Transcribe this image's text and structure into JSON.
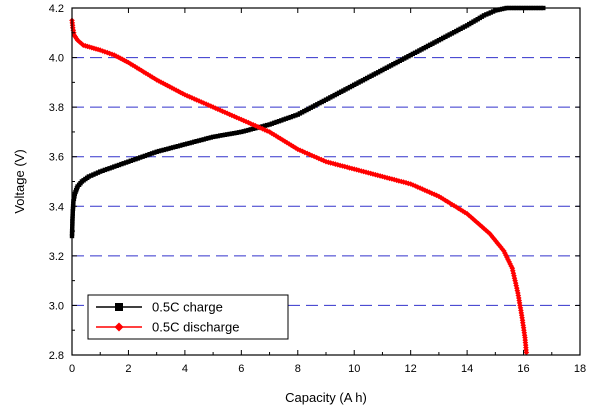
{
  "chart_data": {
    "type": "line",
    "title": "",
    "xlabel": "Capacity (A h)",
    "ylabel": "Voltage (V)",
    "xlim": [
      0,
      18
    ],
    "ylim": [
      2.8,
      4.2
    ],
    "x_ticks": [
      0,
      2,
      4,
      6,
      8,
      10,
      12,
      14,
      16,
      18
    ],
    "y_ticks": [
      2.8,
      3.0,
      3.2,
      3.4,
      3.6,
      3.8,
      4.0,
      4.2
    ],
    "grid": "horizontal dashed",
    "legend_placement": "bottom-left",
    "series": [
      {
        "name": "0.5C charge",
        "color": "#000000",
        "marker": "square",
        "points": [
          [
            0.0,
            3.28
          ],
          [
            0.02,
            3.36
          ],
          [
            0.05,
            3.42
          ],
          [
            0.1,
            3.45
          ],
          [
            0.2,
            3.48
          ],
          [
            0.35,
            3.5
          ],
          [
            0.6,
            3.52
          ],
          [
            1.0,
            3.54
          ],
          [
            1.5,
            3.56
          ],
          [
            2.0,
            3.58
          ],
          [
            3.0,
            3.62
          ],
          [
            4.0,
            3.65
          ],
          [
            5.0,
            3.68
          ],
          [
            6.0,
            3.7
          ],
          [
            7.0,
            3.73
          ],
          [
            8.0,
            3.77
          ],
          [
            9.0,
            3.83
          ],
          [
            10.0,
            3.89
          ],
          [
            11.0,
            3.95
          ],
          [
            12.0,
            4.01
          ],
          [
            13.0,
            4.07
          ],
          [
            14.0,
            4.13
          ],
          [
            14.6,
            4.17
          ],
          [
            15.0,
            4.19
          ],
          [
            15.4,
            4.2
          ],
          [
            16.0,
            4.2
          ],
          [
            16.7,
            4.2
          ]
        ]
      },
      {
        "name": "0.5C discharge",
        "color": "#ff0000",
        "marker": "diamond",
        "points": [
          [
            0.0,
            4.15
          ],
          [
            0.03,
            4.12
          ],
          [
            0.08,
            4.09
          ],
          [
            0.2,
            4.07
          ],
          [
            0.4,
            4.05
          ],
          [
            0.7,
            4.04
          ],
          [
            1.0,
            4.03
          ],
          [
            1.5,
            4.01
          ],
          [
            2.0,
            3.98
          ],
          [
            3.0,
            3.91
          ],
          [
            4.0,
            3.85
          ],
          [
            5.0,
            3.8
          ],
          [
            6.0,
            3.75
          ],
          [
            7.0,
            3.7
          ],
          [
            8.0,
            3.63
          ],
          [
            9.0,
            3.58
          ],
          [
            10.0,
            3.55
          ],
          [
            11.0,
            3.52
          ],
          [
            12.0,
            3.49
          ],
          [
            13.0,
            3.44
          ],
          [
            14.0,
            3.37
          ],
          [
            14.8,
            3.29
          ],
          [
            15.3,
            3.22
          ],
          [
            15.6,
            3.15
          ],
          [
            15.8,
            3.05
          ],
          [
            15.95,
            2.95
          ],
          [
            16.05,
            2.87
          ],
          [
            16.1,
            2.81
          ]
        ]
      }
    ]
  }
}
